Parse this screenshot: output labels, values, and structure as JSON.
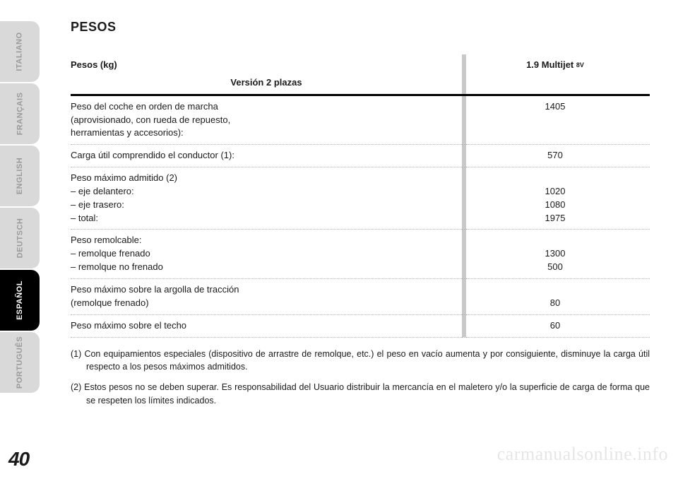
{
  "tabs": [
    {
      "label": "ITALIANO",
      "active": false
    },
    {
      "label": "FRANÇAIS",
      "active": false
    },
    {
      "label": "ENGLISH",
      "active": false
    },
    {
      "label": "DEUTSCH",
      "active": false
    },
    {
      "label": "ESPAÑOL",
      "active": true
    },
    {
      "label": "PORTUGUÊS",
      "active": false
    }
  ],
  "title": "PESOS",
  "table": {
    "head_label": "Pesos (kg)",
    "head_sub": "Versión 2 plazas",
    "head_value": "1.9 Multijet",
    "head_value_sub": "8V",
    "rows": [
      {
        "label": "Peso del coche en orden de marcha\n(aprovisionado, con rueda de repuesto,\nherramientas y accesorios):",
        "value": "1405"
      },
      {
        "label": "Carga útil comprendido el conductor (1):",
        "value": "570"
      },
      {
        "label": "Peso máximo admitido (2)\n– eje delantero:\n– eje trasero:\n– total:",
        "value": "\n1020\n1080\n1975"
      },
      {
        "label": "Peso remolcable:\n– remolque frenado\n– remolque no frenado",
        "value": "\n1300\n500"
      },
      {
        "label": "Peso máximo sobre la argolla de tracción\n(remolque frenado)",
        "value": "\n80"
      },
      {
        "label": "Peso máximo sobre el techo",
        "value": "60"
      }
    ]
  },
  "notes": [
    "(1) Con equipamientos especiales (dispositivo de arrastre de remolque, etc.) el peso en vacío aumenta y por consiguiente, disminuye la carga útil respecto a los pesos máximos admitidos.",
    "(2) Estos pesos no se deben superar. Es responsabilidad del Usuario distribuir la mercancía en el maletero y/o la superficie de carga de forma que se respeten los límites indicados."
  ],
  "page_number": "40",
  "watermark": "carmanualsonline.info",
  "colors": {
    "tab_inactive_bg": "#d9d9d9",
    "tab_inactive_fg": "#9a9a9a",
    "tab_active_bg": "#000000",
    "tab_active_fg": "#ffffff",
    "divider": "#c9c9c9",
    "dotted": "#b0b0b0"
  }
}
